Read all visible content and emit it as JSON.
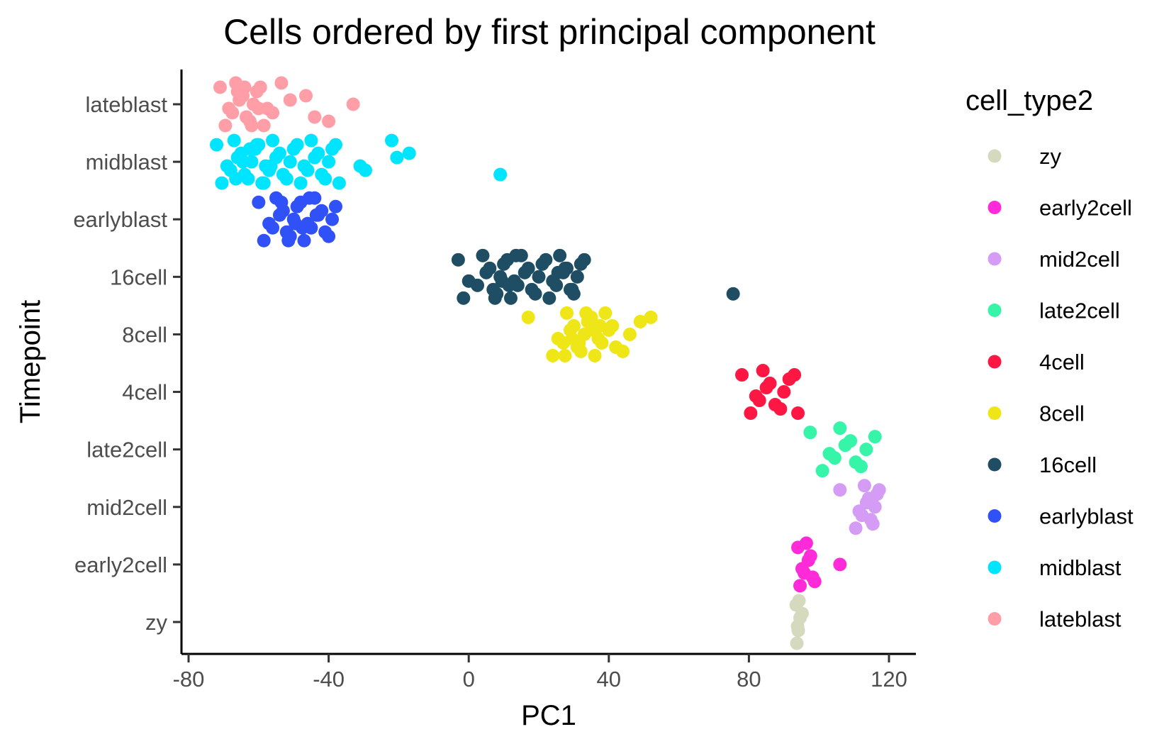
{
  "chart_data": {
    "type": "scatter",
    "title": "Cells ordered by first principal component",
    "xlabel": "PC1",
    "ylabel": "Timepoint",
    "xlim": [
      -81,
      127
    ],
    "x_ticks": [
      -80,
      -40,
      0,
      40,
      80,
      120
    ],
    "x_tick_labels": [
      "-80",
      "-40",
      "0",
      "40",
      "80",
      "120"
    ],
    "categories": [
      "zy",
      "early2cell",
      "mid2cell",
      "late2cell",
      "4cell",
      "8cell",
      "16cell",
      "earlyblast",
      "midblast",
      "lateblast"
    ],
    "grid": false,
    "legend": {
      "title": "cell_type2",
      "position": "right"
    },
    "series": [
      {
        "name": "zy",
        "color": "#D5D9BE",
        "category": "zy",
        "x": [
          93.5,
          93.7,
          93.9,
          94.1,
          94.3,
          94.6,
          95.2
        ]
      },
      {
        "name": "early2cell",
        "color": "#FF2BD9",
        "category": "early2cell",
        "x": [
          94.0,
          94.6,
          95.2,
          95.8,
          96.4,
          97.0,
          97.6,
          98.2,
          98.8,
          106.0
        ]
      },
      {
        "name": "mid2cell",
        "color": "#D59CF5",
        "category": "mid2cell",
        "x": [
          106.0,
          110.5,
          111.5,
          112.3,
          113.0,
          113.6,
          114.2,
          114.8,
          115.4,
          116.0,
          116.6,
          117.2
        ]
      },
      {
        "name": "late2cell",
        "color": "#37F5A8",
        "category": "late2cell",
        "x": [
          97.5,
          101.0,
          103.0,
          104.5,
          106.0,
          107.5,
          109.0,
          110.5,
          112.0,
          113.5,
          116.0
        ]
      },
      {
        "name": "4cell",
        "color": "#FF1744",
        "category": "4cell",
        "x": [
          78.0,
          80.5,
          82.0,
          83.0,
          84.0,
          85.0,
          86.0,
          87.5,
          89.0,
          90.0,
          91.5,
          93.0,
          94.0
        ]
      },
      {
        "name": "8cell",
        "color": "#EEE617",
        "category": "8cell",
        "x": [
          17.0,
          24.0,
          25.5,
          27.0,
          28.0,
          29.0,
          30.0,
          31.0,
          32.0,
          33.0,
          34.0,
          35.0,
          36.0,
          37.0,
          38.0,
          39.0,
          40.0,
          41.0,
          42.0,
          44.0,
          46.0,
          49.0,
          52.0,
          27.5,
          29.5,
          31.5,
          33.5,
          35.5,
          37.5
        ]
      },
      {
        "name": "16cell",
        "color": "#1F4E64",
        "category": "16cell",
        "x": [
          -3.0,
          -1.5,
          0.0,
          2.5,
          4.0,
          5.0,
          6.0,
          7.0,
          8.0,
          9.0,
          10.0,
          11.0,
          12.0,
          13.0,
          14.0,
          15.0,
          16.0,
          17.0,
          18.0,
          19.0,
          20.0,
          21.0,
          22.0,
          23.0,
          24.0,
          25.0,
          26.0,
          27.0,
          28.0,
          29.0,
          30.0,
          31.0,
          32.0,
          33.0,
          7.5,
          9.5,
          11.5,
          13.5,
          25.5,
          27.5,
          29.5,
          75.5
        ]
      },
      {
        "name": "earlyblast",
        "color": "#3050F8",
        "category": "earlyblast",
        "x": [
          -60.0,
          -58.5,
          -57.0,
          -56.0,
          -55.0,
          -54.0,
          -53.0,
          -52.0,
          -51.0,
          -50.0,
          -49.0,
          -48.0,
          -47.0,
          -46.0,
          -45.0,
          -44.0,
          -43.0,
          -42.0,
          -41.0,
          -40.0,
          -39.0,
          -38.0,
          -53.5,
          -51.5,
          -49.5,
          -47.5,
          -45.5,
          -43.5
        ]
      },
      {
        "name": "midblast",
        "color": "#00E5FF",
        "category": "midblast",
        "x": [
          -72.0,
          -70.5,
          -69.0,
          -68.0,
          -67.0,
          -66.0,
          -65.0,
          -64.0,
          -63.0,
          -62.0,
          -61.0,
          -60.0,
          -59.0,
          -58.0,
          -57.0,
          -56.0,
          -55.0,
          -54.0,
          -53.0,
          -52.0,
          -51.0,
          -50.0,
          -49.0,
          -48.0,
          -47.0,
          -46.0,
          -45.0,
          -44.0,
          -43.0,
          -42.0,
          -41.0,
          -40.0,
          -39.0,
          -38.0,
          -37.0,
          -31.0,
          -29.5,
          -22.0,
          -20.5,
          -17.0,
          9.0,
          -66.5,
          -64.5,
          -62.5,
          -60.5,
          -58.5,
          -56.5
        ]
      },
      {
        "name": "lateblast",
        "color": "#FF9EA6",
        "category": "lateblast",
        "x": [
          -71.0,
          -69.5,
          -68.5,
          -67.5,
          -66.5,
          -65.5,
          -64.5,
          -63.5,
          -62.5,
          -61.5,
          -60.5,
          -59.5,
          -58.5,
          -57.5,
          -56.0,
          -53.5,
          -51.0,
          -46.5,
          -44.0,
          -40.0,
          -33.0,
          -66.0,
          -64.0,
          -62.0,
          -60.0
        ]
      }
    ]
  }
}
